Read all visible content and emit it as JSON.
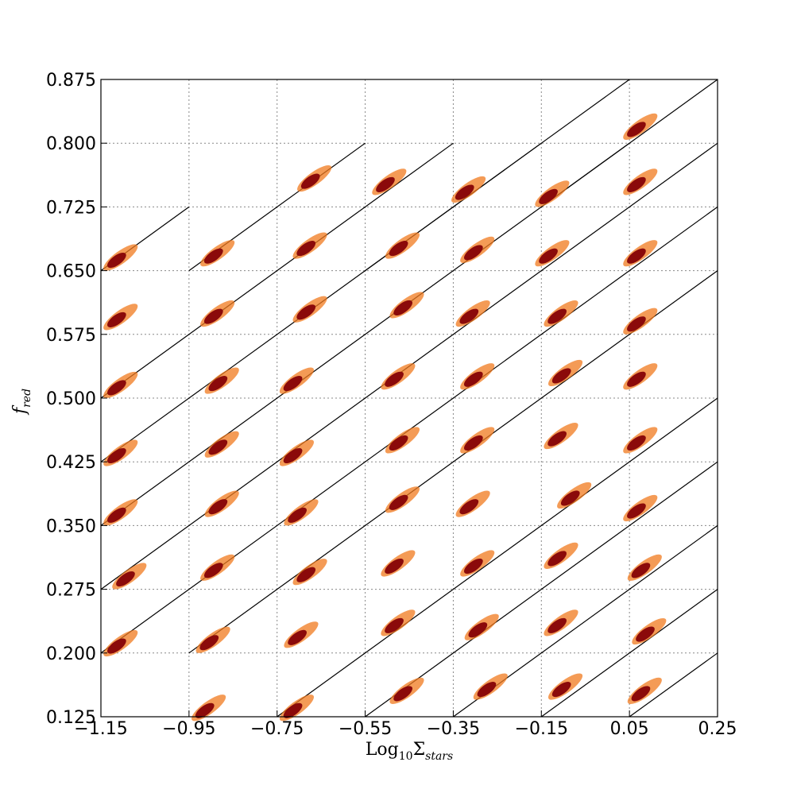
{
  "chart_data": {
    "type": "scatter",
    "xlabel": [
      "Log",
      "10",
      "Σ",
      "stars"
    ],
    "ylabel": [
      "f",
      "red"
    ],
    "xlim": [
      -1.15,
      0.25
    ],
    "ylim": [
      0.125,
      0.875
    ],
    "xticks": [
      {
        "value": -1.15,
        "label": "−1.15"
      },
      {
        "value": -0.95,
        "label": "−0.95"
      },
      {
        "value": -0.75,
        "label": "−0.75"
      },
      {
        "value": -0.55,
        "label": "−0.55"
      },
      {
        "value": -0.35,
        "label": "−0.35"
      },
      {
        "value": -0.15,
        "label": "−0.15"
      },
      0.05,
      0.25
    ],
    "yticks": [
      0.125,
      {
        "value": 0.2,
        "label": "0.200"
      },
      0.275,
      {
        "value": 0.35,
        "label": "0.350"
      },
      0.425,
      {
        "value": 0.5,
        "label": "0.500"
      },
      0.575,
      {
        "value": 0.65,
        "label": "0.650"
      },
      0.725,
      {
        "value": 0.8,
        "label": "0.800"
      },
      0.875
    ],
    "grid": true,
    "lines": [
      [
        [
          -1.15,
          0.65
        ],
        [
          -0.95,
          0.725
        ]
      ],
      [
        [
          -0.95,
          0.65
        ],
        [
          -0.55,
          0.8
        ]
      ],
      [
        [
          -1.15,
          0.5
        ],
        [
          -0.35,
          0.8
        ]
      ],
      [
        [
          -1.15,
          0.425
        ],
        [
          -0.15,
          0.8
        ]
      ],
      [
        [
          -1.15,
          0.35
        ],
        [
          0.05,
          0.8
        ]
      ],
      [
        [
          -1.15,
          0.275
        ],
        [
          0.25,
          0.8
        ]
      ],
      [
        [
          -1.15,
          0.2
        ],
        [
          0.25,
          0.725
        ]
      ],
      [
        [
          -0.95,
          0.2
        ],
        [
          0.25,
          0.65
        ]
      ],
      [
        [
          -0.75,
          0.125
        ],
        [
          0.25,
          0.5
        ]
      ],
      [
        [
          -0.55,
          0.125
        ],
        [
          0.25,
          0.425
        ]
      ],
      [
        [
          -0.35,
          0.125
        ],
        [
          0.25,
          0.35
        ]
      ],
      [
        [
          -0.15,
          0.125
        ],
        [
          0.25,
          0.275
        ]
      ],
      [
        [
          0.05,
          0.125
        ],
        [
          0.25,
          0.2
        ]
      ],
      [
        [
          -0.35,
          0.725
        ],
        [
          0.05,
          0.875
        ]
      ],
      [
        [
          -0.15,
          0.725
        ],
        [
          0.25,
          0.875
        ]
      ],
      [
        [
          -0.55,
          0.65
        ],
        [
          -0.35,
          0.725
        ]
      ]
    ],
    "series": [
      {
        "color": "#8b0a0a",
        "halo": "#f07a1e",
        "x": [
          -1.12,
          -1.12,
          -1.12,
          -1.12,
          -1.12,
          -1.1,
          -1.12,
          -0.9,
          -0.9,
          -0.89,
          -0.89,
          -0.89,
          -0.9,
          -0.91,
          -0.92,
          -0.68,
          -0.69,
          -0.69,
          -0.72,
          -0.72,
          -0.71,
          -0.69,
          -0.71,
          -0.72,
          -0.51,
          -0.48,
          -0.47,
          -0.49,
          -0.48,
          -0.48,
          -0.49,
          -0.49,
          -0.47,
          -0.33,
          -0.31,
          -0.32,
          -0.31,
          -0.31,
          -0.32,
          -0.31,
          -0.3,
          -0.28,
          -0.14,
          -0.14,
          -0.12,
          -0.11,
          -0.12,
          -0.09,
          -0.12,
          -0.12,
          -0.11,
          0.06,
          0.06,
          0.06,
          0.06,
          0.06,
          0.06,
          0.06,
          0.07,
          0.08,
          0.07
        ],
        "values": [
          0.66,
          0.59,
          0.51,
          0.43,
          0.36,
          0.285,
          0.206,
          0.665,
          0.594,
          0.515,
          0.44,
          0.37,
          0.295,
          0.21,
          0.13,
          0.753,
          0.674,
          0.599,
          0.515,
          0.43,
          0.36,
          0.29,
          0.216,
          0.13,
          0.749,
          0.674,
          0.604,
          0.52,
          0.445,
          0.375,
          0.3,
          0.23,
          0.15,
          0.74,
          0.669,
          0.594,
          0.52,
          0.445,
          0.37,
          0.3,
          0.225,
          0.155,
          0.735,
          0.665,
          0.594,
          0.524,
          0.45,
          0.38,
          0.309,
          0.23,
          0.155,
          0.814,
          0.749,
          0.665,
          0.585,
          0.52,
          0.445,
          0.365,
          0.295,
          0.22,
          0.15
        ]
      }
    ]
  }
}
